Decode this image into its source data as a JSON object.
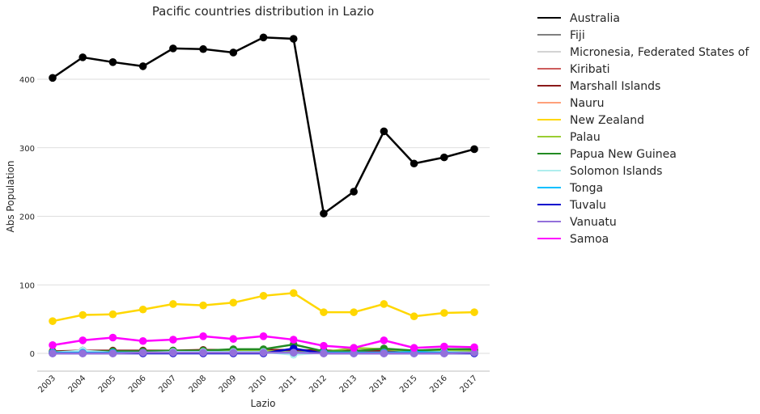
{
  "chart_data": {
    "type": "line",
    "title": "Pacific countries distribution in Lazio",
    "xlabel": "Lazio",
    "ylabel": "Abs Population",
    "categories": [
      "2003",
      "2004",
      "2005",
      "2006",
      "2007",
      "2008",
      "2009",
      "2010",
      "2011",
      "2012",
      "2013",
      "2014",
      "2015",
      "2016",
      "2017"
    ],
    "yticks": [
      0,
      100,
      200,
      300,
      400
    ],
    "ylim": [
      -27,
      495
    ],
    "grid": "horizontal",
    "legend_position": "outside-right",
    "series": [
      {
        "name": "Australia",
        "color": "#000000",
        "markers": true,
        "values": [
          402,
          432,
          425,
          419,
          445,
          444,
          439,
          461,
          459,
          204,
          236,
          324,
          277,
          286,
          298
        ]
      },
      {
        "name": "Fiji",
        "color": "#808080",
        "markers": true,
        "values": [
          2,
          4,
          2,
          2,
          3,
          3,
          4,
          3,
          3,
          2,
          3,
          3,
          3,
          3,
          3
        ]
      },
      {
        "name": "Micronesia, Federated States of",
        "color": "#d3d3d3",
        "markers": false,
        "values": [
          null,
          null,
          null,
          null,
          null,
          null,
          null,
          null,
          null,
          null,
          null,
          null,
          null,
          null,
          null
        ]
      },
      {
        "name": "Kiribati",
        "color": "#cd5c5c",
        "markers": false,
        "values": [
          null,
          null,
          null,
          null,
          null,
          null,
          null,
          null,
          null,
          null,
          null,
          null,
          null,
          null,
          null
        ]
      },
      {
        "name": "Marshall Islands",
        "color": "#8b1a1a",
        "markers": true,
        "values": [
          3,
          4,
          4,
          4,
          4,
          5,
          5,
          5,
          5,
          4,
          4,
          4,
          4,
          4,
          4
        ]
      },
      {
        "name": "Nauru",
        "color": "#ffa07a",
        "markers": false,
        "values": [
          null,
          null,
          null,
          null,
          null,
          null,
          null,
          null,
          null,
          null,
          null,
          null,
          null,
          null,
          null
        ]
      },
      {
        "name": "New Zealand",
        "color": "#ffd700",
        "markers": true,
        "values": [
          47,
          56,
          57,
          64,
          72,
          70,
          74,
          84,
          88,
          60,
          60,
          72,
          54,
          59,
          60
        ]
      },
      {
        "name": "Palau",
        "color": "#9acd32",
        "markers": true,
        "values": [
          1,
          2,
          1,
          2,
          3,
          3,
          3,
          4,
          1,
          2,
          8,
          6,
          3,
          4,
          3
        ]
      },
      {
        "name": "Papua New Guinea",
        "color": "#228b22",
        "markers": true,
        "values": [
          2,
          3,
          3,
          3,
          4,
          4,
          6,
          6,
          13,
          3,
          3,
          7,
          4,
          6,
          6
        ]
      },
      {
        "name": "Solomon Islands",
        "color": "#afeeee",
        "markers": true,
        "values": [
          1,
          4,
          1,
          1,
          2,
          2,
          2,
          2,
          -2,
          1,
          1,
          1,
          1,
          2,
          1
        ]
      },
      {
        "name": "Tonga",
        "color": "#00bfff",
        "markers": true,
        "values": [
          1,
          1,
          1,
          1,
          1,
          1,
          1,
          1,
          1,
          1,
          1,
          1,
          2,
          1,
          1
        ]
      },
      {
        "name": "Tuvalu",
        "color": "#0000cd",
        "markers": true,
        "values": [
          0,
          0,
          0,
          0,
          0,
          0,
          0,
          0,
          7,
          0,
          0,
          0,
          0,
          0,
          0
        ]
      },
      {
        "name": "Vanuatu",
        "color": "#9370db",
        "markers": true,
        "values": [
          0,
          0,
          0,
          1,
          1,
          1,
          1,
          1,
          1,
          0,
          0,
          0,
          0,
          0,
          1
        ]
      },
      {
        "name": "Samoa",
        "color": "#ff00ff",
        "markers": true,
        "values": [
          12,
          19,
          23,
          18,
          20,
          25,
          21,
          25,
          20,
          11,
          8,
          19,
          8,
          10,
          9
        ]
      }
    ]
  }
}
